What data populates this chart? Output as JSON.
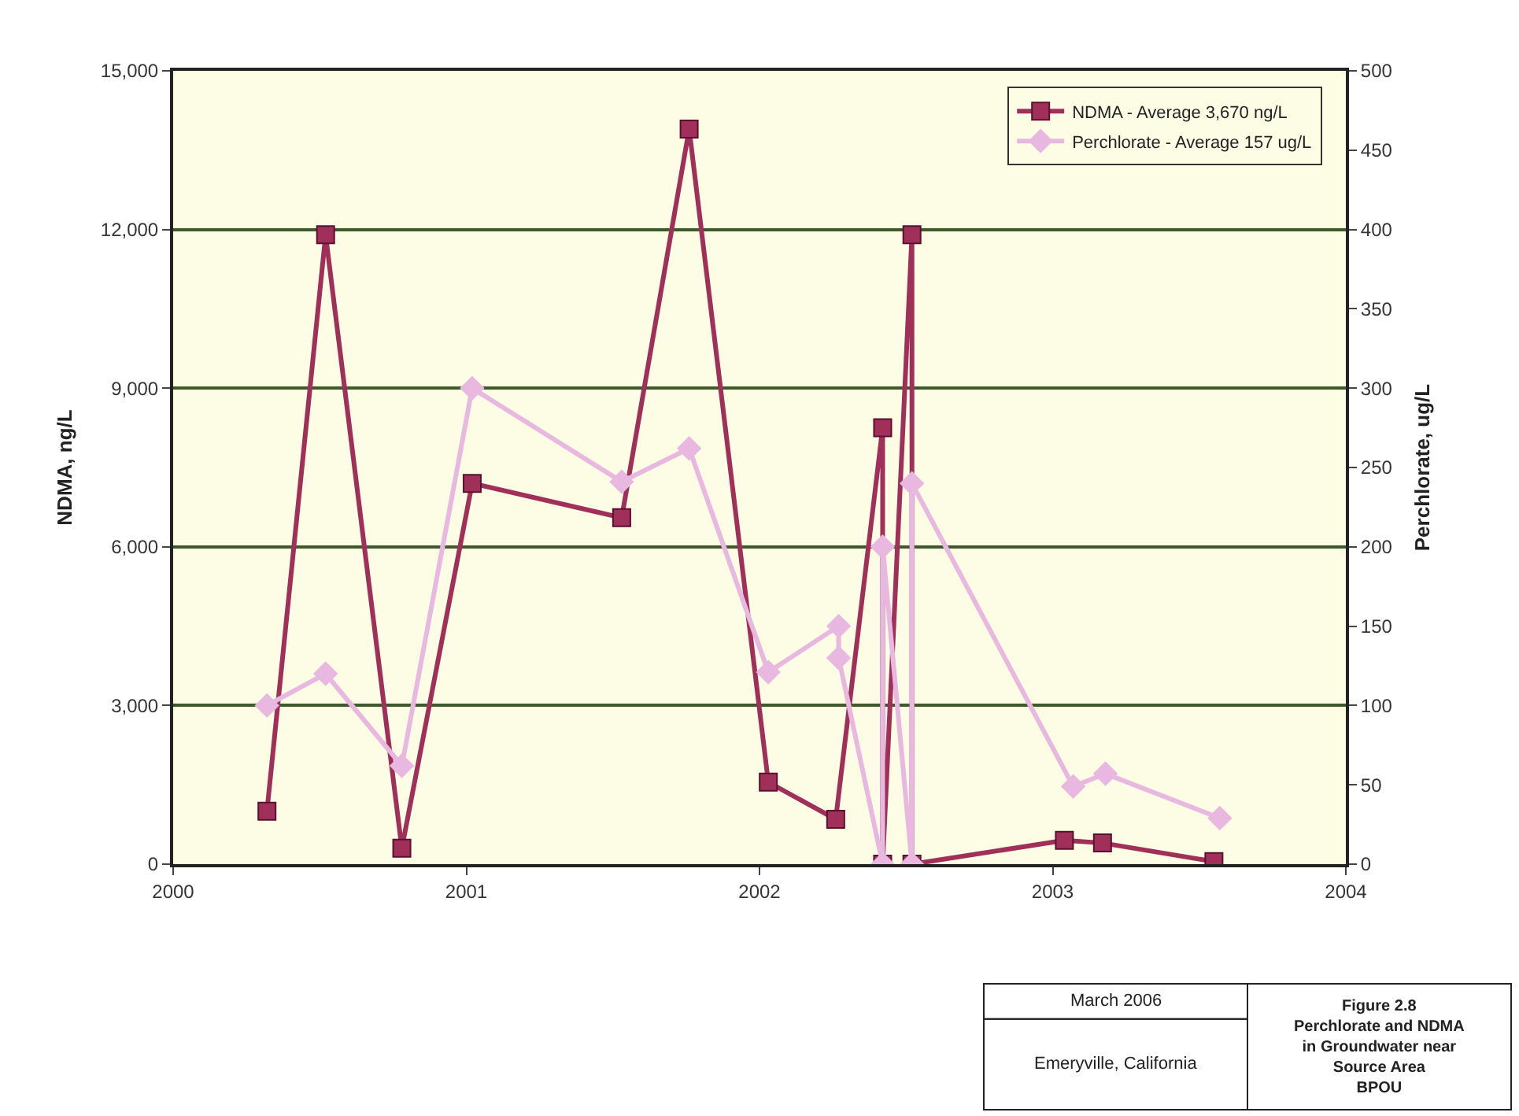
{
  "chart_data": {
    "type": "line",
    "xlabel": null,
    "ylabel": "NDMA, ng/L",
    "y2label": "Perchlorate, ug/L",
    "xlim": [
      2000,
      2004
    ],
    "xticks": [
      2000,
      2001,
      2002,
      2003,
      2004
    ],
    "ylim": [
      0,
      15000
    ],
    "yticks": [
      0,
      {
        "value": 3000,
        "label": "3,000"
      },
      {
        "value": 6000,
        "label": "6,000"
      },
      {
        "value": 9000,
        "label": "9,000"
      },
      {
        "value": 12000,
        "label": "12,000"
      },
      {
        "value": 15000,
        "label": "15,000"
      }
    ],
    "y2lim": [
      0,
      500
    ],
    "y2ticks": [
      0,
      50,
      100,
      150,
      200,
      250,
      300,
      350,
      400,
      450,
      500
    ],
    "grid": "y",
    "legend": "top right",
    "line_style": "solid",
    "series": [
      {
        "name": "NDMA - Average 3,670 ng/L",
        "color": "#a0305a",
        "marker": "square",
        "x": [
          2000.32,
          2000.52,
          2000.78,
          2001.02,
          2001.53,
          2001.76,
          2002.03,
          2002.26,
          2002.42,
          2002.42,
          2002.52,
          2002.52,
          2003.04,
          2003.17,
          2003.55
        ],
        "values": [
          1000,
          11900,
          300,
          7200,
          6550,
          13900,
          1550,
          850,
          8250,
          0,
          11900,
          0,
          450,
          400,
          50
        ]
      },
      {
        "name": "Perchlorate - Average 157 ug/L",
        "color": "#e8b8e0",
        "marker": "diamond",
        "axis": "y2",
        "x": [
          2000.32,
          2000.52,
          2000.78,
          2001.02,
          2001.53,
          2001.76,
          2002.03,
          2002.27,
          2002.27,
          2002.42,
          2002.42,
          2002.52,
          2002.52,
          2003.07,
          2003.18,
          2003.57
        ],
        "values": [
          100,
          120,
          62,
          300,
          241,
          262,
          121,
          150,
          130,
          0,
          200,
          0,
          240,
          49,
          57,
          29
        ]
      }
    ],
    "annotations": [
      "March 2006",
      "Emeryville, California",
      "Figure 2.8\nPerchlorate and NDMA\nin Groundwater near\nSource Area\nBPOU"
    ]
  }
}
